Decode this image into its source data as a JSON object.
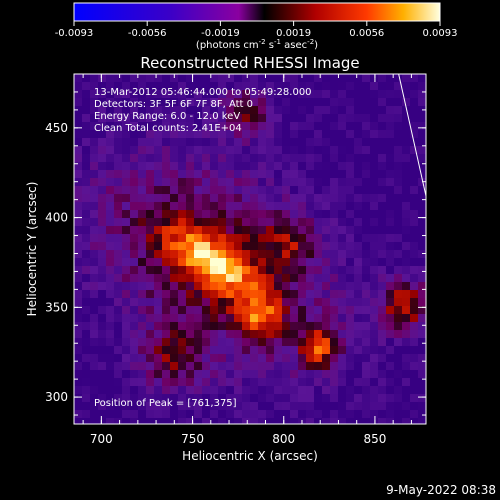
{
  "chart_data": {
    "type": "heatmap",
    "title": "Reconstructed RHESSI Image",
    "xlabel": "Heliocentric X (arcsec)",
    "ylabel": "Heliocentric Y (arcsec)",
    "xlim": [
      685,
      878
    ],
    "ylim": [
      285,
      480
    ],
    "x_ticks": [
      700,
      750,
      800,
      850
    ],
    "y_ticks": [
      300,
      350,
      400,
      450
    ],
    "colorbar": {
      "ticks": [
        "-0.0093",
        "-0.0056",
        "-0.0019",
        "0.0019",
        "0.0056",
        "0.0093"
      ],
      "range": [
        -0.0093,
        0.0093
      ],
      "units": "(photons cm",
      "units_sup1": "-2",
      "units_mid1": " s",
      "units_sup2": "-1",
      "units_mid2": " asec",
      "units_sup3": "-2",
      "units_end": ")"
    },
    "annotations": [
      "13-Mar-2012 05:46:44.000 to 05:49:28.000",
      "Detectors: 3F 5F 6F 7F 8F, Att 0",
      "Energy Range: 6.0 - 12.0 keV",
      "Clean     Total counts: 2.41E+04"
    ],
    "peak_label": "Position of Peak = [761,375]",
    "peak": {
      "x": 761,
      "y": 375
    },
    "limb_line": [
      [
        863,
        480
      ],
      [
        878,
        412
      ]
    ]
  },
  "timestamp": "9-May-2022 08:38"
}
